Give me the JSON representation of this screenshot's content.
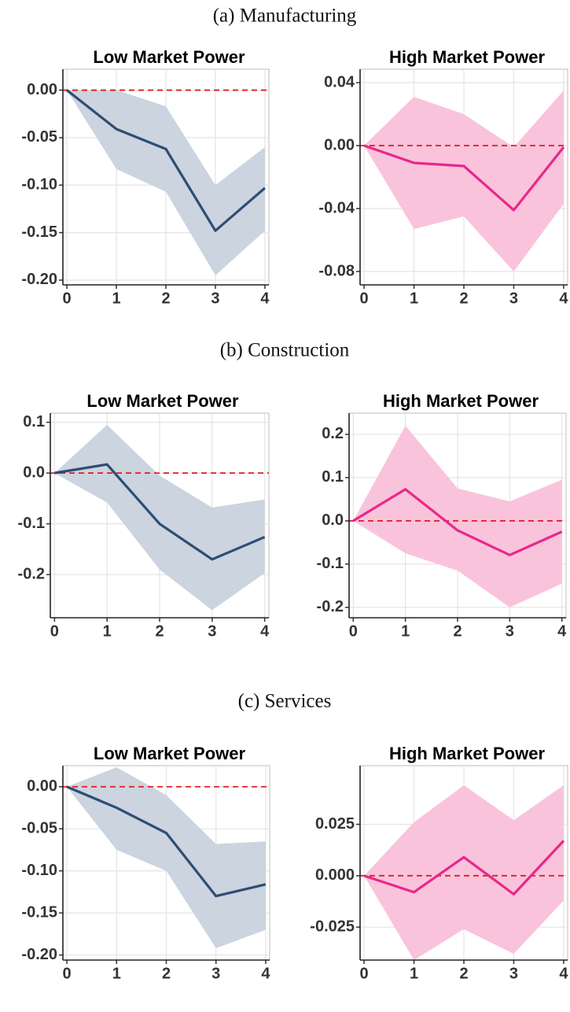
{
  "sections": [
    "(a) Manufacturing",
    "(b) Construction",
    "(c) Services"
  ],
  "chart_data": [
    {
      "type": "line",
      "title": "Low Market Power",
      "x": [
        0,
        1,
        2,
        3,
        4
      ],
      "xlim": [
        -0.08,
        4.08
      ],
      "xticks": [
        0,
        1,
        2,
        3,
        4
      ],
      "ylim": [
        -0.205,
        0.022
      ],
      "yticks": [
        {
          "value": 0,
          "label": "0.00"
        },
        -0.05,
        {
          "value": -0.1,
          "label": "-0.10"
        },
        -0.15,
        {
          "value": -0.2,
          "label": "-0.20"
        }
      ],
      "grid": true,
      "reference_line": {
        "value": 0,
        "color": "#e41a1c"
      },
      "series": [
        {
          "color": "#2e4d74",
          "band_color": "#cbd4df",
          "values": [
            0,
            -0.041,
            -0.062,
            -0.148,
            -0.103
          ],
          "lower": [
            0,
            -0.083,
            -0.107,
            -0.195,
            -0.148
          ],
          "upper": [
            0,
            0.0,
            -0.017,
            -0.1,
            -0.06
          ]
        }
      ]
    },
    {
      "type": "line",
      "title": "High Market Power",
      "x": [
        0,
        1,
        2,
        3,
        4
      ],
      "xlim": [
        -0.08,
        4.08
      ],
      "xticks": [
        0,
        1,
        2,
        3,
        4
      ],
      "ylim": [
        -0.0885,
        0.0485
      ],
      "yticks": [
        0.04,
        {
          "value": 0,
          "label": "0.00"
        },
        -0.04,
        -0.08
      ],
      "grid": true,
      "reference_line": {
        "value": 0,
        "color": "#e41a1c"
      },
      "series": [
        {
          "color": "#e8288a",
          "band_color": "#f9c3dc",
          "values": [
            0,
            -0.011,
            -0.013,
            -0.041,
            -0.001
          ],
          "lower": [
            0,
            -0.053,
            -0.045,
            -0.08,
            -0.037
          ],
          "upper": [
            0,
            0.031,
            0.02,
            -0.001,
            0.035
          ]
        }
      ]
    },
    {
      "type": "line",
      "title": "Low Market Power",
      "x": [
        0,
        1,
        2,
        3,
        4
      ],
      "xlim": [
        -0.08,
        4.08
      ],
      "xticks": [
        0,
        1,
        2,
        3,
        4
      ],
      "ylim": [
        -0.285,
        0.118
      ],
      "yticks": [
        0.1,
        {
          "value": 0,
          "label": "0.0"
        },
        -0.1,
        -0.2
      ],
      "grid": true,
      "reference_line": {
        "value": 0,
        "color": "#e41a1c"
      },
      "series": [
        {
          "color": "#2e4d74",
          "band_color": "#cbd4df",
          "values": [
            0,
            0.017,
            -0.1,
            -0.17,
            -0.126
          ],
          "lower": [
            0,
            -0.058,
            -0.19,
            -0.27,
            -0.197
          ],
          "upper": [
            0,
            0.095,
            -0.005,
            -0.068,
            -0.052
          ]
        }
      ]
    },
    {
      "type": "line",
      "title": "High Market Power",
      "x": [
        0,
        1,
        2,
        3,
        4
      ],
      "xlim": [
        -0.08,
        4.08
      ],
      "xticks": [
        0,
        1,
        2,
        3,
        4
      ],
      "ylim": [
        -0.224,
        0.249
      ],
      "yticks": [
        0.2,
        0.1,
        {
          "value": 0,
          "label": "0.0"
        },
        -0.1,
        -0.2
      ],
      "grid": true,
      "reference_line": {
        "value": 0,
        "color": "#e41a1c"
      },
      "series": [
        {
          "color": "#e8288a",
          "band_color": "#f9c3dc",
          "values": [
            0,
            0.073,
            -0.022,
            -0.079,
            -0.025
          ],
          "lower": [
            0,
            -0.075,
            -0.115,
            -0.2,
            -0.145
          ],
          "upper": [
            0,
            0.22,
            0.075,
            0.045,
            0.095
          ]
        }
      ]
    },
    {
      "type": "line",
      "title": "Low Market Power",
      "x": [
        0,
        1,
        2,
        3,
        4
      ],
      "xlim": [
        -0.08,
        4.08
      ],
      "xticks": [
        0,
        1,
        2,
        3,
        4
      ],
      "ylim": [
        -0.206,
        0.025
      ],
      "yticks": [
        {
          "value": 0,
          "label": "0.00"
        },
        -0.05,
        {
          "value": -0.1,
          "label": "-0.10"
        },
        -0.15,
        {
          "value": -0.2,
          "label": "-0.20"
        }
      ],
      "grid": true,
      "reference_line": {
        "value": 0,
        "color": "#e41a1c"
      },
      "series": [
        {
          "color": "#2e4d74",
          "band_color": "#cbd4df",
          "values": [
            0,
            -0.025,
            -0.055,
            -0.13,
            -0.116
          ],
          "lower": [
            0,
            -0.075,
            -0.1,
            -0.192,
            -0.17
          ],
          "upper": [
            0,
            0.023,
            -0.01,
            -0.068,
            -0.065
          ]
        }
      ]
    },
    {
      "type": "line",
      "title": "High Market Power",
      "x": [
        0,
        1,
        2,
        3,
        4
      ],
      "xlim": [
        -0.08,
        4.08
      ],
      "xticks": [
        0,
        1,
        2,
        3,
        4
      ],
      "ylim": [
        -0.041,
        0.0535
      ],
      "yticks": [
        0.025,
        {
          "value": 0,
          "label": "0.000"
        },
        -0.025
      ],
      "grid": true,
      "reference_line": {
        "value": 0,
        "color": "#e41a1c"
      },
      "series": [
        {
          "color": "#e8288a",
          "band_color": "#f9c3dc",
          "values": [
            0,
            -0.008,
            0.009,
            -0.009,
            0.017
          ],
          "lower": [
            0,
            -0.041,
            -0.026,
            -0.038,
            -0.012
          ],
          "upper": [
            0,
            0.026,
            0.044,
            0.027,
            0.044
          ]
        }
      ]
    }
  ]
}
